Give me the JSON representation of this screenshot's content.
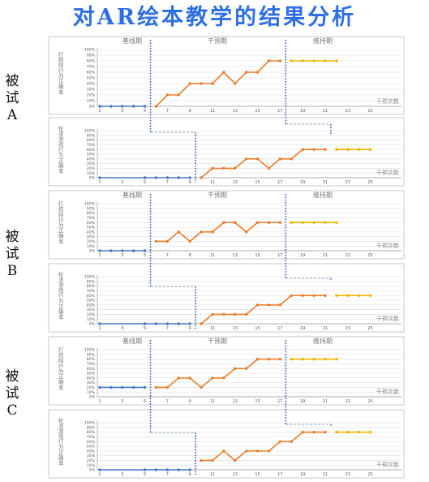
{
  "title": "对AR绘本教学的结果分析",
  "colors": {
    "baseline": "#4a78c8",
    "intervention": "#e87d2b",
    "maintenance": "#f0b400",
    "phase_line": "#3a5fb0",
    "grid": "#dcdcdc"
  },
  "subjects": [
    {
      "label": "被试A"
    },
    {
      "label": "被试B"
    },
    {
      "label": "被试C"
    }
  ],
  "chart_data": [
    {
      "type": "line",
      "subject": "被试A",
      "measure": "打招呼行为正确率",
      "phase_labels": [
        "基线期",
        "干预期",
        "维持期"
      ],
      "xlabel": "干预次数",
      "x_ticks": [
        1,
        3,
        5,
        7,
        9,
        11,
        13,
        15,
        17,
        19,
        21,
        23,
        25
      ],
      "y_ticks": [
        "0%",
        "10%",
        "20%",
        "30%",
        "40%",
        "50%",
        "60%",
        "70%",
        "80%",
        "90%",
        "100%"
      ],
      "ylim": [
        0,
        100
      ],
      "series": [
        {
          "phase": "baseline",
          "x": [
            1,
            2,
            3,
            4,
            5
          ],
          "values": [
            0,
            0,
            0,
            0,
            0
          ]
        },
        {
          "phase": "intervention",
          "x": [
            6,
            7,
            8,
            9,
            10,
            11,
            12,
            13,
            14,
            15,
            16,
            17
          ],
          "values": [
            0,
            20,
            20,
            40,
            40,
            40,
            60,
            40,
            60,
            60,
            80,
            80
          ]
        },
        {
          "phase": "maintenance",
          "x": [
            18,
            19,
            20,
            21,
            22
          ],
          "values": [
            80,
            80,
            80,
            80,
            80
          ]
        }
      ]
    },
    {
      "type": "line",
      "subject": "被试A",
      "measure": "轮流游戏行为正确率",
      "phase_labels": [],
      "xlabel": "干预次数",
      "x_ticks": [
        1,
        3,
        5,
        7,
        9,
        11,
        13,
        15,
        17,
        19,
        21,
        23,
        25
      ],
      "y_ticks": [
        "0%",
        "10%",
        "20%",
        "30%",
        "40%",
        "50%",
        "60%",
        "70%",
        "80%",
        "90%",
        "100%"
      ],
      "ylim": [
        0,
        100
      ],
      "series": [
        {
          "phase": "baseline",
          "x": [
            1,
            5,
            6,
            7,
            8,
            9
          ],
          "values": [
            0,
            0,
            0,
            0,
            0,
            0
          ]
        },
        {
          "phase": "intervention",
          "x": [
            10,
            11,
            12,
            13,
            14,
            15,
            16,
            17,
            18,
            19,
            20,
            21
          ],
          "values": [
            0,
            20,
            20,
            20,
            40,
            40,
            20,
            40,
            40,
            60,
            60,
            60
          ]
        },
        {
          "phase": "maintenance",
          "x": [
            22,
            23,
            24,
            25
          ],
          "values": [
            60,
            60,
            60,
            60
          ]
        }
      ]
    },
    {
      "type": "line",
      "subject": "被试B",
      "measure": "打招呼行为正确率",
      "phase_labels": [
        "基线期",
        "干预期",
        "维持期"
      ],
      "xlabel": "干预次数",
      "x_ticks": [
        1,
        3,
        5,
        7,
        9,
        11,
        13,
        15,
        17,
        19,
        21,
        23,
        25
      ],
      "y_ticks": [
        "0%",
        "10%",
        "20%",
        "30%",
        "40%",
        "50%",
        "60%",
        "70%",
        "80%",
        "90%",
        "100%"
      ],
      "ylim": [
        0,
        100
      ],
      "series": [
        {
          "phase": "baseline",
          "x": [
            1,
            2,
            3,
            4,
            5
          ],
          "values": [
            0,
            0,
            0,
            0,
            0
          ]
        },
        {
          "phase": "intervention",
          "x": [
            6,
            7,
            8,
            9,
            10,
            11,
            12,
            13,
            14,
            15,
            16,
            17
          ],
          "values": [
            20,
            20,
            40,
            20,
            40,
            40,
            60,
            60,
            40,
            60,
            60,
            60
          ]
        },
        {
          "phase": "maintenance",
          "x": [
            18,
            19,
            20,
            21,
            22
          ],
          "values": [
            60,
            60,
            60,
            60,
            60
          ]
        }
      ]
    },
    {
      "type": "line",
      "subject": "被试B",
      "measure": "轮流游戏行为正确率",
      "phase_labels": [],
      "xlabel": "干预次数",
      "x_ticks": [
        1,
        3,
        5,
        7,
        9,
        11,
        13,
        15,
        17,
        19,
        21,
        23,
        25
      ],
      "y_ticks": [
        "0%",
        "10%",
        "20%",
        "30%",
        "40%",
        "50%",
        "60%",
        "70%",
        "80%",
        "90%",
        "100%"
      ],
      "ylim": [
        0,
        100
      ],
      "series": [
        {
          "phase": "baseline",
          "x": [
            1,
            5,
            6,
            7,
            8,
            9
          ],
          "values": [
            0,
            0,
            0,
            0,
            0,
            0
          ]
        },
        {
          "phase": "intervention",
          "x": [
            10,
            11,
            12,
            13,
            14,
            15,
            16,
            17,
            18,
            19,
            20,
            21
          ],
          "values": [
            0,
            20,
            20,
            20,
            20,
            40,
            40,
            40,
            60,
            60,
            60,
            60
          ]
        },
        {
          "phase": "maintenance",
          "x": [
            22,
            23,
            24,
            25
          ],
          "values": [
            60,
            60,
            60,
            60
          ]
        }
      ]
    },
    {
      "type": "line",
      "subject": "被试C",
      "measure": "打招呼行为正确率",
      "phase_labels": [
        "基线期",
        "干预期",
        "维持期"
      ],
      "xlabel": "干预次数",
      "x_ticks": [
        1,
        3,
        5,
        7,
        9,
        11,
        13,
        15,
        17,
        19,
        21,
        23,
        25
      ],
      "y_ticks": [
        "0%",
        "10%",
        "20%",
        "30%",
        "40%",
        "50%",
        "60%",
        "70%",
        "80%",
        "90%",
        "100%"
      ],
      "ylim": [
        0,
        100
      ],
      "series": [
        {
          "phase": "baseline",
          "x": [
            1,
            2,
            3,
            4,
            5
          ],
          "values": [
            20,
            20,
            20,
            20,
            20
          ]
        },
        {
          "phase": "intervention",
          "x": [
            6,
            7,
            8,
            9,
            10,
            11,
            12,
            13,
            14,
            15,
            16,
            17
          ],
          "values": [
            20,
            20,
            40,
            40,
            20,
            40,
            40,
            60,
            60,
            80,
            80,
            80
          ]
        },
        {
          "phase": "maintenance",
          "x": [
            18,
            19,
            20,
            21,
            22
          ],
          "values": [
            80,
            80,
            80,
            80,
            80
          ]
        }
      ]
    },
    {
      "type": "line",
      "subject": "被试C",
      "measure": "轮流游戏行为正确率",
      "phase_labels": [],
      "xlabel": "干预次数",
      "x_ticks": [
        1,
        3,
        5,
        7,
        9,
        11,
        13,
        15,
        17,
        19,
        21,
        23,
        25
      ],
      "y_ticks": [
        "0%",
        "10%",
        "20%",
        "30%",
        "40%",
        "50%",
        "60%",
        "70%",
        "80%",
        "90%",
        "100%"
      ],
      "ylim": [
        0,
        100
      ],
      "series": [
        {
          "phase": "baseline",
          "x": [
            1,
            5,
            6,
            7,
            8,
            9
          ],
          "values": [
            0,
            0,
            0,
            0,
            0,
            0
          ]
        },
        {
          "phase": "intervention",
          "x": [
            10,
            11,
            12,
            13,
            14,
            15,
            16,
            17,
            18,
            19,
            20,
            21
          ],
          "values": [
            20,
            20,
            40,
            20,
            40,
            40,
            40,
            60,
            60,
            80,
            80,
            80
          ]
        },
        {
          "phase": "maintenance",
          "x": [
            22,
            23,
            24,
            25
          ],
          "values": [
            80,
            80,
            80,
            80
          ]
        }
      ]
    }
  ]
}
